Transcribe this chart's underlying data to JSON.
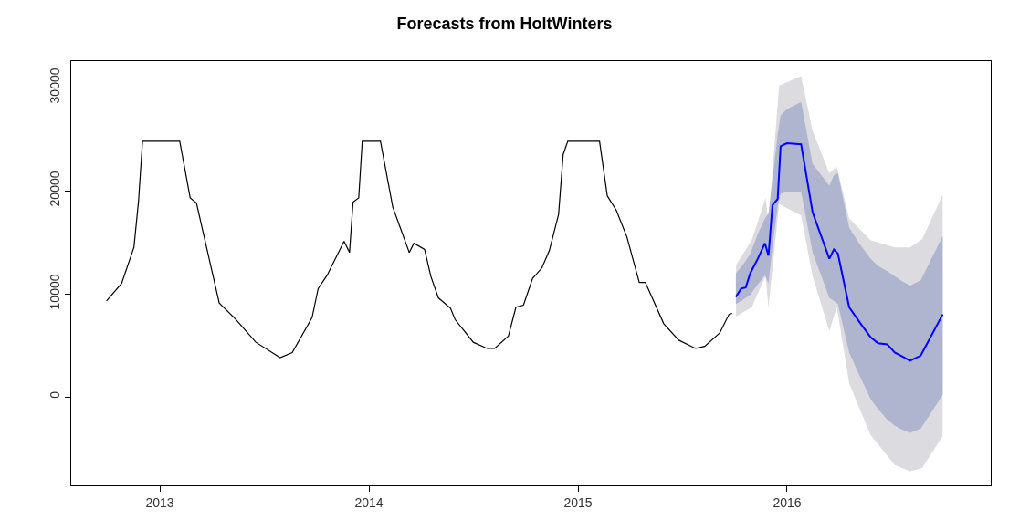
{
  "chart_data": {
    "type": "line",
    "title": "Forecasts from HoltWinters",
    "xlim": [
      2012.576,
      2016.974
    ],
    "xticks": [
      2013,
      2014,
      2015,
      2016
    ],
    "ylim": [
      -8580,
      32570
    ],
    "yticks": [
      0,
      10000,
      20000,
      30000
    ],
    "marker": "none",
    "line_style": "solid",
    "series": [
      {
        "color": "#dcdce0",
        "x": [
          2015.756,
          2015.831,
          2015.897,
          2015.911,
          2015.962,
          2016.067,
          2016.122,
          2016.202,
          2016.238,
          2016.297,
          2016.399,
          2016.515,
          2016.588,
          2016.646,
          2016.744
        ],
        "values": [
          null,
          null,
          null,
          null,
          null,
          null,
          null,
          null,
          null,
          null,
          null,
          null,
          null,
          null,
          null
        ],
        "lower": [
          7800,
          8700,
          11700,
          8700,
          18700,
          17600,
          11700,
          6400,
          8700,
          1300,
          -3700,
          -6600,
          -7200,
          -6900,
          -3800
        ],
        "upper": [
          12800,
          15200,
          19300,
          17000,
          30200,
          31100,
          25800,
          21700,
          22300,
          17300,
          15200,
          14500,
          14500,
          15300,
          19600
        ]
      },
      {
        "color": "#000000",
        "x": [
          2012.745,
          2012.817,
          2012.876,
          2012.898,
          2012.917,
          2013.095,
          2013.145,
          2013.175,
          2013.284,
          2013.364,
          2013.459,
          2013.575,
          2013.633,
          2013.728,
          2013.757,
          2013.8,
          2013.881,
          2013.907,
          2013.924,
          2013.951,
          2013.968,
          2014.055,
          2014.114,
          2014.193,
          2014.215,
          2014.266,
          2014.296,
          2014.332,
          2014.39,
          2014.412,
          2014.499,
          2014.565,
          2014.601,
          2014.667,
          2014.703,
          2014.739,
          2014.783,
          2014.827,
          2014.863,
          2014.907,
          2014.929,
          2014.951,
          2015.103,
          2015.14,
          2015.183,
          2015.234,
          2015.293,
          2015.322,
          2015.41,
          2015.482,
          2015.562,
          2015.606,
          2015.678,
          2015.722,
          2015.737
        ],
        "values": [
          9300,
          11000,
          14500,
          19000,
          24800,
          24800,
          19300,
          18800,
          9100,
          7500,
          5300,
          3800,
          4300,
          7700,
          10500,
          11800,
          15100,
          14000,
          18900,
          19300,
          24800,
          24800,
          18400,
          14000,
          14900,
          14300,
          11700,
          9600,
          8600,
          7500,
          5300,
          4700,
          4700,
          5900,
          8700,
          8900,
          11500,
          12500,
          14200,
          17700,
          23500,
          24800,
          24800,
          19500,
          18100,
          15500,
          11100,
          11100,
          7100,
          5500,
          4700,
          4900,
          6200,
          8000,
          8100
        ]
      },
      {
        "color": "#0000ff",
        "x": [
          2015.755,
          2015.78,
          2015.802,
          2015.824,
          2015.86,
          2015.894,
          2015.911,
          2015.93,
          2015.955,
          2015.969,
          2015.999,
          2016.067,
          2016.122,
          2016.202,
          2016.224,
          2016.243,
          2016.297,
          2016.348,
          2016.399,
          2016.435,
          2016.479,
          2016.515,
          2016.552,
          2016.588,
          2016.639,
          2016.744
        ],
        "values": [
          9700,
          10500,
          10600,
          12000,
          13400,
          14900,
          13700,
          18600,
          19200,
          24300,
          24600,
          24500,
          17900,
          13400,
          14300,
          13900,
          8700,
          7200,
          5800,
          5200,
          5100,
          4300,
          3900,
          3500,
          4000,
          8000
        ],
        "lower": [
          9000,
          9300,
          9600,
          9900,
          10900,
          11800,
          11000,
          14500,
          18500,
          19700,
          19900,
          19900,
          14000,
          9600,
          9300,
          9000,
          4300,
          2000,
          -200,
          -1200,
          -2200,
          -2800,
          -3200,
          -3500,
          -3100,
          200
        ],
        "upper": [
          12000,
          12600,
          13200,
          13900,
          15800,
          17300,
          17800,
          21000,
          25500,
          27300,
          27900,
          28600,
          22600,
          20500,
          21500,
          21700,
          16400,
          14800,
          13400,
          12700,
          12200,
          11700,
          11200,
          10800,
          11300,
          15600
        ]
      }
    ]
  }
}
